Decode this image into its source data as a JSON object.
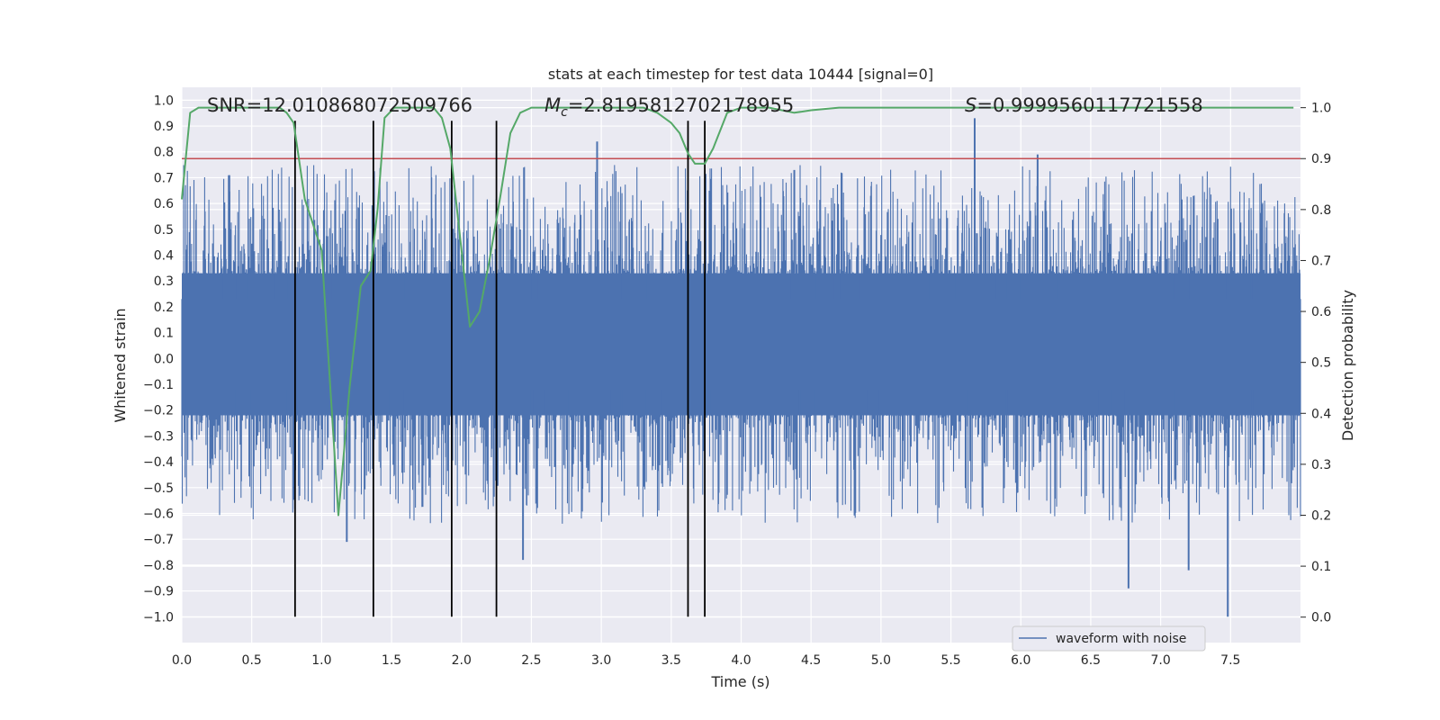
{
  "chart_data": {
    "type": "line",
    "title": "stats at each timestep for test data 10444 [signal=0]",
    "xlabel": "Time (s)",
    "ylabel_left": "Whitened strain",
    "ylabel_right": "Detection probability",
    "xlim": [
      0.0,
      8.0
    ],
    "ylim_left": [
      -1.1,
      1.05
    ],
    "ylim_right": [
      -0.05,
      1.04
    ],
    "x_ticks": [
      "0.0",
      "0.5",
      "1.0",
      "1.5",
      "2.0",
      "2.5",
      "3.0",
      "3.5",
      "4.0",
      "4.5",
      "5.0",
      "5.5",
      "6.0",
      "6.5",
      "7.0",
      "7.5"
    ],
    "y_ticks_left": [
      "1.0",
      "0.9",
      "0.8",
      "0.7",
      "0.6",
      "0.5",
      "0.4",
      "0.3",
      "0.2",
      "0.1",
      "0.0",
      "−0.1",
      "−0.2",
      "−0.3",
      "−0.4",
      "−0.5",
      "−0.6",
      "−0.7",
      "−0.8",
      "−0.9",
      "−1.0"
    ],
    "y_ticks_right": [
      "1.0",
      "0.9",
      "0.8",
      "0.7",
      "0.6",
      "0.5",
      "0.4",
      "0.3",
      "0.2",
      "0.1",
      "0.0"
    ],
    "annotations": {
      "snr": "SNR=12.010868072509766",
      "mc_symbol": "M",
      "mc_sub": "c",
      "mc_value": "=2.8195812702178955",
      "s_symbol": "S",
      "s_value": "=0.9999560117721558"
    },
    "legend": {
      "label": "waveform with noise",
      "location": "lower-right"
    },
    "threshold": {
      "value": 0.9,
      "axis": "right",
      "color": "#c44e52"
    },
    "vertical_lines": {
      "times": [
        0.81,
        1.37,
        1.93,
        2.25,
        3.62,
        3.74
      ],
      "y_range_left": [
        -1.0,
        0.92
      ],
      "color": "#000000"
    },
    "waveform": {
      "name": "waveform with noise",
      "color": "#4c72b0",
      "t_start": 0.0,
      "t_end": 8.0,
      "dense_band": [
        -0.22,
        0.33
      ],
      "noise_scale": 0.42,
      "peaks": [
        {
          "t": 2.97,
          "v": 0.84
        },
        {
          "t": 5.67,
          "v": 0.93
        },
        {
          "t": 6.12,
          "v": 0.79
        },
        {
          "t": 4.38,
          "v": 0.73
        },
        {
          "t": 0.34,
          "v": 0.71
        },
        {
          "t": 7.48,
          "v": -1.0
        },
        {
          "t": 6.77,
          "v": -0.89
        },
        {
          "t": 7.2,
          "v": -0.82
        },
        {
          "t": 2.44,
          "v": -0.78
        },
        {
          "t": 1.18,
          "v": -0.71
        }
      ]
    },
    "probability": {
      "name": "detection probability",
      "color": "#55a868",
      "x": [
        0.0,
        0.06,
        0.12,
        0.2,
        0.4,
        0.6,
        0.7,
        0.75,
        0.8,
        0.88,
        1.0,
        1.12,
        1.2,
        1.28,
        1.35,
        1.4,
        1.45,
        1.52,
        1.6,
        1.7,
        1.8,
        1.86,
        1.92,
        2.0,
        2.06,
        2.13,
        2.2,
        2.28,
        2.35,
        2.42,
        2.5,
        2.6,
        2.8,
        3.0,
        3.2,
        3.3,
        3.4,
        3.5,
        3.56,
        3.62,
        3.67,
        3.74,
        3.8,
        3.9,
        4.0,
        4.2,
        4.38,
        4.5,
        4.7,
        5.0,
        5.5,
        6.0,
        6.5,
        7.0,
        7.5,
        7.95
      ],
      "y": [
        0.82,
        0.99,
        1.0,
        1.0,
        1.0,
        1.0,
        1.0,
        0.99,
        0.97,
        0.82,
        0.72,
        0.2,
        0.45,
        0.65,
        0.68,
        0.8,
        0.98,
        1.0,
        1.0,
        1.0,
        1.0,
        0.98,
        0.92,
        0.72,
        0.57,
        0.6,
        0.7,
        0.83,
        0.95,
        0.99,
        1.0,
        1.0,
        1.0,
        1.0,
        1.0,
        1.0,
        0.99,
        0.97,
        0.95,
        0.91,
        0.89,
        0.89,
        0.92,
        0.99,
        1.0,
        1.0,
        0.99,
        0.995,
        1.0,
        1.0,
        1.0,
        1.0,
        1.0,
        1.0,
        1.0,
        1.0
      ]
    }
  }
}
